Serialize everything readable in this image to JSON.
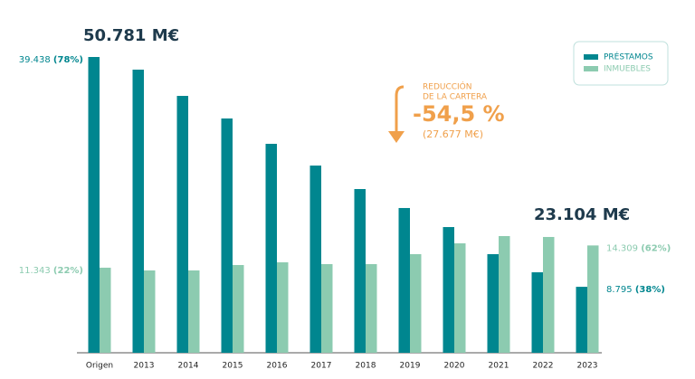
{
  "chart_data": {
    "type": "bar",
    "categories": [
      "Origen",
      "2013",
      "2014",
      "2015",
      "2016",
      "2017",
      "2018",
      "2019",
      "2020",
      "2021",
      "2022",
      "2023"
    ],
    "series": [
      {
        "name": "PRÉSTAMOS",
        "color": "#00868f",
        "values": [
          39438,
          37750,
          34250,
          31240,
          27860,
          24960,
          21830,
          19300,
          16760,
          13150,
          10730,
          8795
        ],
        "value_labels": [
          "39.438",
          null,
          null,
          null,
          null,
          null,
          null,
          null,
          null,
          null,
          null,
          "8.795"
        ],
        "share_labels": [
          "(78%)",
          null,
          null,
          null,
          null,
          null,
          null,
          null,
          null,
          null,
          null,
          "(38%)"
        ]
      },
      {
        "name": "INMUEBLES",
        "color": "#8ccbb0",
        "values": [
          11343,
          10980,
          10980,
          11700,
          12060,
          11820,
          11820,
          13150,
          14590,
          15560,
          15440,
          14309
        ],
        "value_labels": [
          "11.343",
          null,
          null,
          null,
          null,
          null,
          null,
          null,
          null,
          null,
          null,
          "14.309"
        ],
        "share_labels": [
          "(22%)",
          null,
          null,
          null,
          null,
          null,
          null,
          null,
          null,
          null,
          null,
          "(62%)"
        ]
      }
    ],
    "totals": [
      "50.781 M€",
      "23.104 M€"
    ],
    "reduction": {
      "caption": [
        "REDUCCIÓN",
        "DE LA CARTERA"
      ],
      "percent": "-54,5 %",
      "amount": "(27.677 M€)"
    },
    "legend": "top-right"
  }
}
